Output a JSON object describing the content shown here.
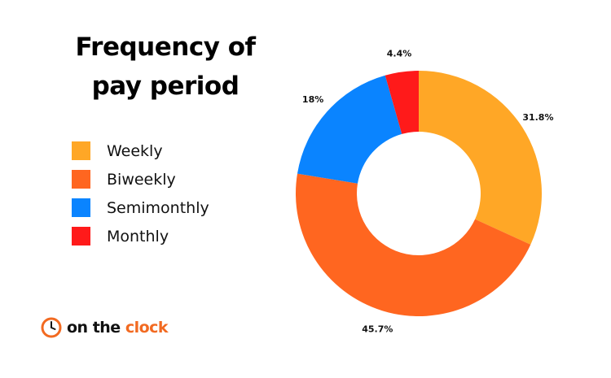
{
  "title_lines": [
    "Frequency of",
    "pay period"
  ],
  "chart_data": {
    "type": "pie",
    "variant": "donut",
    "title": "Frequency of pay period",
    "categories": [
      "Weekly",
      "Biweekly",
      "Semimonthly",
      "Monthly"
    ],
    "values": [
      31.8,
      45.7,
      18,
      4.4
    ],
    "value_labels": [
      "31.8%",
      "45.7%",
      "18%",
      "4.4%"
    ],
    "colors": [
      "#FFA726",
      "#FF6620",
      "#0A84FF",
      "#FF1A1A"
    ],
    "legend_position": "left",
    "start_angle": "12 o'clock",
    "direction": "clockwise"
  },
  "logo": {
    "text_main": "on the",
    "text_accent": "clock",
    "icon": "clock-icon",
    "accent_color": "#F26A21"
  }
}
